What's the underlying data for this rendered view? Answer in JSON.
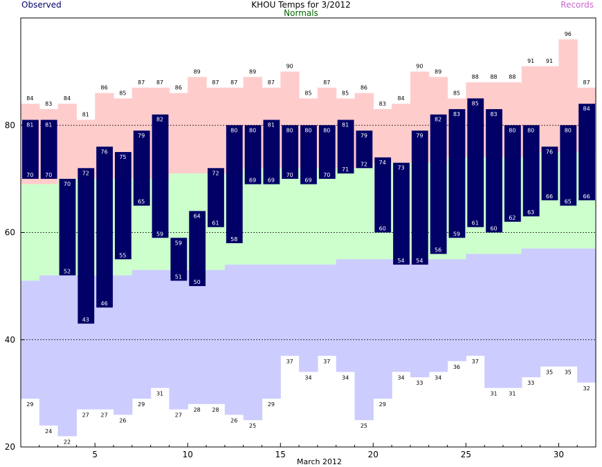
{
  "header": {
    "title": "KHOU Temps for 3/2012",
    "left_label": "Observed",
    "center_label": "Normals",
    "right_label": "Records"
  },
  "colors": {
    "record_band": "#ffcccc",
    "normal_band": "#ccffcc",
    "below_normal_band": "#ccccff",
    "observed_bar": "#000066",
    "observed_text": "#000066",
    "normals_text": "#006600",
    "records_text": "#cc66cc"
  },
  "chart_data": {
    "type": "bar",
    "title": "KHOU Temps for 3/2012",
    "xlabel": "March 2012",
    "ylabel": "",
    "xlim": [
      1,
      31
    ],
    "ylim": [
      20,
      100
    ],
    "x_ticks": [
      5,
      10,
      15,
      20,
      25,
      30
    ],
    "y_ticks": [
      20,
      40,
      60,
      80
    ],
    "grid_lines": [
      40,
      60,
      80
    ],
    "days": [
      1,
      2,
      3,
      4,
      5,
      6,
      7,
      8,
      9,
      10,
      11,
      12,
      13,
      14,
      15,
      16,
      17,
      18,
      19,
      20,
      21,
      22,
      23,
      24,
      25,
      26,
      27,
      28,
      29,
      30,
      31
    ],
    "observed_high": [
      81,
      81,
      70,
      72,
      76,
      75,
      79,
      82,
      59,
      64,
      72,
      80,
      80,
      81,
      80,
      80,
      80,
      81,
      79,
      74,
      73,
      79,
      82,
      83,
      85,
      83,
      80,
      80,
      76,
      80,
      84
    ],
    "observed_low": [
      70,
      70,
      52,
      43,
      46,
      55,
      65,
      59,
      51,
      50,
      61,
      58,
      69,
      69,
      70,
      69,
      70,
      71,
      72,
      60,
      54,
      54,
      56,
      59,
      61,
      60,
      62,
      63,
      66,
      65,
      66
    ],
    "normal_high": [
      69,
      69,
      70,
      70,
      70,
      70,
      70,
      70,
      71,
      71,
      71,
      71,
      72,
      72,
      72,
      72,
      72,
      72,
      72,
      73,
      73,
      73,
      73,
      74,
      74,
      74,
      74,
      74,
      75,
      75,
      75
    ],
    "normal_low": [
      51,
      52,
      52,
      52,
      52,
      52,
      53,
      53,
      53,
      53,
      53,
      54,
      54,
      54,
      54,
      54,
      54,
      55,
      55,
      55,
      55,
      55,
      55,
      55,
      56,
      56,
      56,
      57,
      57,
      57,
      57
    ],
    "record_high": [
      84,
      83,
      84,
      81,
      86,
      85,
      87,
      87,
      86,
      89,
      87,
      87,
      89,
      87,
      90,
      85,
      87,
      85,
      86,
      83,
      84,
      90,
      89,
      85,
      88,
      88,
      88,
      91,
      91,
      96,
      87
    ],
    "record_low": [
      29,
      24,
      22,
      27,
      27,
      26,
      29,
      31,
      27,
      28,
      28,
      26,
      25,
      29,
      37,
      34,
      37,
      34,
      25,
      29,
      34,
      33,
      34,
      36,
      37,
      31,
      31,
      33,
      35,
      35,
      32
    ]
  }
}
